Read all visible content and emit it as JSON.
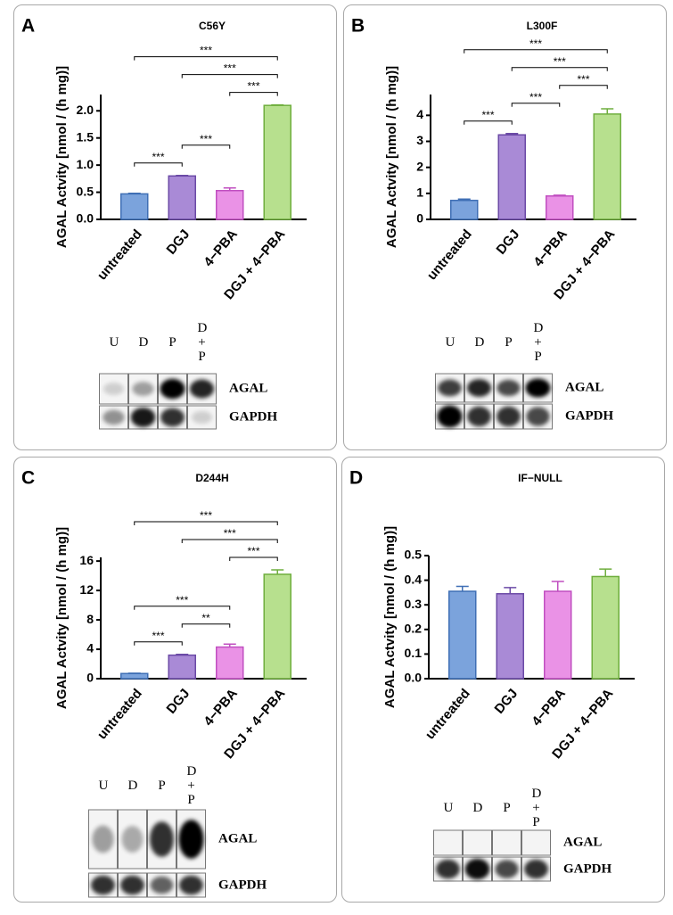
{
  "chart_data": [
    {
      "type": "bar",
      "panel": "A",
      "title": "C56Y",
      "ylabel": "AGAL Actvity [nmol / (h mg)]",
      "categories": [
        "untreated",
        "DGJ",
        "4−PBA",
        "DGJ + 4−PBA"
      ],
      "values": [
        0.47,
        0.8,
        0.53,
        2.1
      ],
      "errors": [
        0.01,
        0.01,
        0.05,
        0.01
      ],
      "colors": [
        "#7ba3dc",
        "#a98ad6",
        "#ea92e6",
        "#b7e08e"
      ],
      "edge_colors": [
        "#3f6fb5",
        "#6b4aa6",
        "#c04fc0",
        "#6fae3e"
      ],
      "ylim": [
        0,
        2.3
      ],
      "yticks": [
        {
          "value": 0,
          "label": "0.0"
        },
        0.5,
        {
          "value": 1,
          "label": "1.0"
        },
        1.5,
        {
          "value": 2,
          "label": "2.0"
        }
      ],
      "annotations": [
        {
          "text": "***",
          "between": [
            "untreated",
            "DGJ"
          ]
        },
        {
          "text": "***",
          "between": [
            "DGJ",
            "4−PBA"
          ]
        },
        {
          "text": "***",
          "between": [
            "4−PBA",
            "DGJ + 4−PBA"
          ]
        },
        {
          "text": "***",
          "between": [
            "DGJ",
            "DGJ + 4−PBA"
          ]
        },
        {
          "text": "***",
          "between": [
            "untreated",
            "DGJ + 4−PBA"
          ]
        }
      ],
      "blot": {
        "lanes": [
          "U",
          "D",
          "P",
          "D+P"
        ],
        "rows": [
          "AGAL",
          "GAPDH"
        ]
      }
    },
    {
      "type": "bar",
      "panel": "B",
      "title": "L300F",
      "ylabel": "AGAL Actvity [nmol / (h mg)]",
      "categories": [
        "untreated",
        "DGJ",
        "4−PBA",
        "DGJ + 4−PBA"
      ],
      "values": [
        0.73,
        3.25,
        0.9,
        4.05
      ],
      "errors": [
        0.05,
        0.05,
        0.03,
        0.2
      ],
      "colors": [
        "#7ba3dc",
        "#a98ad6",
        "#ea92e6",
        "#b7e08e"
      ],
      "edge_colors": [
        "#3f6fb5",
        "#6b4aa6",
        "#c04fc0",
        "#6fae3e"
      ],
      "ylim": [
        0,
        4.8
      ],
      "yticks": [
        0,
        1,
        2,
        3,
        4
      ],
      "annotations": [
        {
          "text": "***",
          "between": [
            "untreated",
            "DGJ"
          ]
        },
        {
          "text": "***",
          "between": [
            "DGJ",
            "4−PBA"
          ]
        },
        {
          "text": "***",
          "between": [
            "4−PBA",
            "DGJ + 4−PBA"
          ]
        },
        {
          "text": "***",
          "between": [
            "DGJ",
            "DGJ + 4−PBA"
          ]
        },
        {
          "text": "***",
          "between": [
            "untreated",
            "DGJ + 4−PBA"
          ]
        }
      ],
      "blot": {
        "lanes": [
          "U",
          "D",
          "P",
          "D+P"
        ],
        "rows": [
          "AGAL",
          "GAPDH"
        ]
      }
    },
    {
      "type": "bar",
      "panel": "C",
      "title": "D244H",
      "ylabel": "AGAL Actvity [nmol / (h mg)]",
      "categories": [
        "untreated",
        "DGJ",
        "4−PBA",
        "DGJ + 4−PBA"
      ],
      "values": [
        0.7,
        3.2,
        4.3,
        14.2
      ],
      "errors": [
        0.05,
        0.1,
        0.4,
        0.6
      ],
      "colors": [
        "#7ba3dc",
        "#a98ad6",
        "#ea92e6",
        "#b7e08e"
      ],
      "edge_colors": [
        "#3f6fb5",
        "#6b4aa6",
        "#c04fc0",
        "#6fae3e"
      ],
      "ylim": [
        0,
        16.5
      ],
      "yticks": [
        0,
        4,
        8,
        12,
        16
      ],
      "annotations": [
        {
          "text": "***",
          "between": [
            "untreated",
            "DGJ"
          ]
        },
        {
          "text": "**",
          "between": [
            "DGJ",
            "4−PBA"
          ]
        },
        {
          "text": "***",
          "between": [
            "untreated",
            "4−PBA"
          ]
        },
        {
          "text": "***",
          "between": [
            "4−PBA",
            "DGJ + 4−PBA"
          ]
        },
        {
          "text": "***",
          "between": [
            "DGJ",
            "DGJ + 4−PBA"
          ]
        },
        {
          "text": "***",
          "between": [
            "untreated",
            "DGJ + 4−PBA"
          ]
        }
      ],
      "blot": {
        "lanes": [
          "U",
          "D",
          "P",
          "D+P"
        ],
        "rows": [
          "AGAL",
          "GAPDH"
        ]
      }
    },
    {
      "type": "bar",
      "panel": "D",
      "title": "IF−NULL",
      "ylabel": "AGAL Actvity [nmol / (h mg)]",
      "categories": [
        "untreated",
        "DGJ",
        "4−PBA",
        "DGJ + 4−PBA"
      ],
      "values": [
        0.355,
        0.345,
        0.355,
        0.415
      ],
      "errors": [
        0.02,
        0.025,
        0.04,
        0.03
      ],
      "colors": [
        "#7ba3dc",
        "#a98ad6",
        "#ea92e6",
        "#b7e08e"
      ],
      "edge_colors": [
        "#3f6fb5",
        "#6b4aa6",
        "#c04fc0",
        "#6fae3e"
      ],
      "ylim": [
        0,
        0.5
      ],
      "yticks": [
        {
          "value": 0,
          "label": "0.0"
        },
        0.1,
        0.2,
        0.3,
        0.4,
        0.5
      ],
      "annotations": [],
      "blot": {
        "lanes": [
          "U",
          "D",
          "P",
          "D+P"
        ],
        "rows": [
          "AGAL",
          "GAPDH"
        ]
      }
    }
  ]
}
